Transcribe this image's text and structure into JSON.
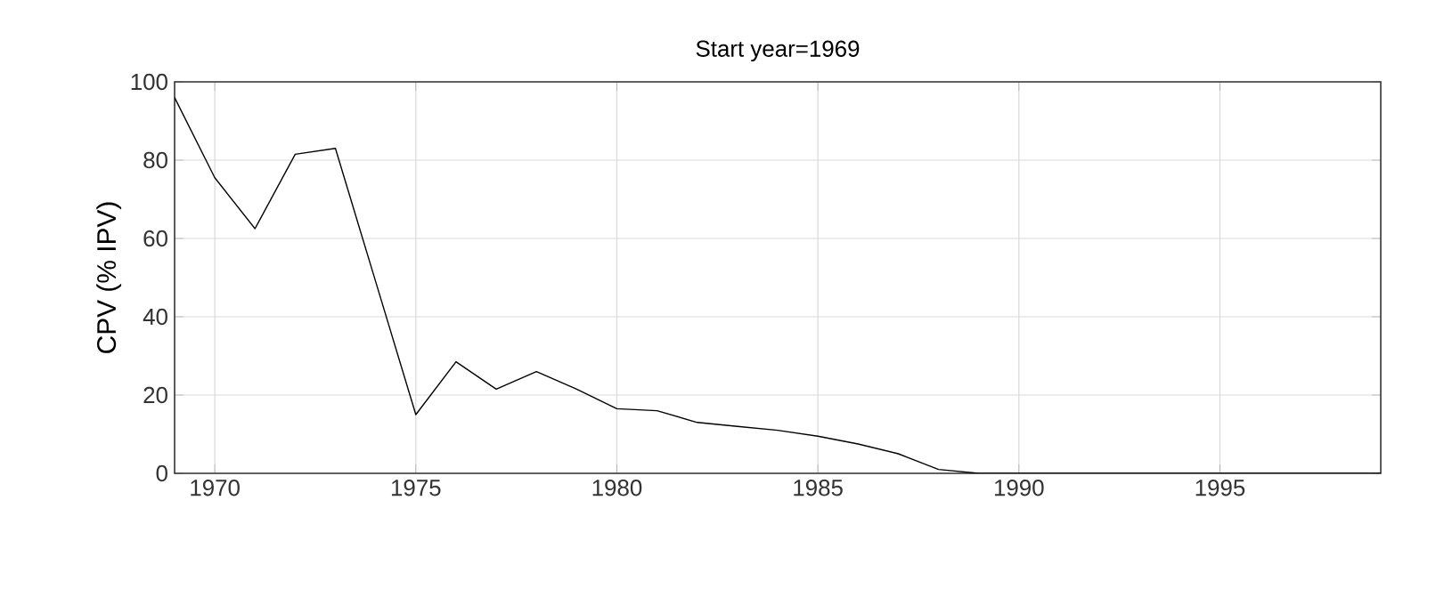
{
  "chart_data": {
    "type": "line",
    "title": "Start year=1969",
    "ylabel": "CPV (% IPV)",
    "x": [
      1969,
      1970,
      1971,
      1972,
      1973,
      1974,
      1975,
      1976,
      1977,
      1978,
      1979,
      1980,
      1981,
      1982,
      1983,
      1984,
      1985,
      1986,
      1987,
      1988,
      1989,
      1990,
      1991,
      1992,
      1993,
      1994,
      1995,
      1996,
      1997,
      1998,
      1999
    ],
    "series": [
      {
        "color": "#000000",
        "values": [
          96,
          75.5,
          62.5,
          81.5,
          83,
          49,
          15,
          28.5,
          21.5,
          26,
          21.5,
          16.5,
          16,
          13,
          12,
          11,
          9.5,
          7.5,
          5,
          1,
          0,
          0,
          0,
          0,
          0,
          0,
          0,
          0,
          0,
          0,
          0
        ]
      }
    ],
    "xlim": [
      1969,
      1999
    ],
    "xticks": [
      1970,
      1975,
      1980,
      1985,
      1990,
      1995
    ],
    "ylim": [
      0,
      100
    ],
    "yticks": [
      0,
      20,
      40,
      60,
      80,
      100
    ],
    "grid": true,
    "marker": "none",
    "line_style": "solid"
  }
}
